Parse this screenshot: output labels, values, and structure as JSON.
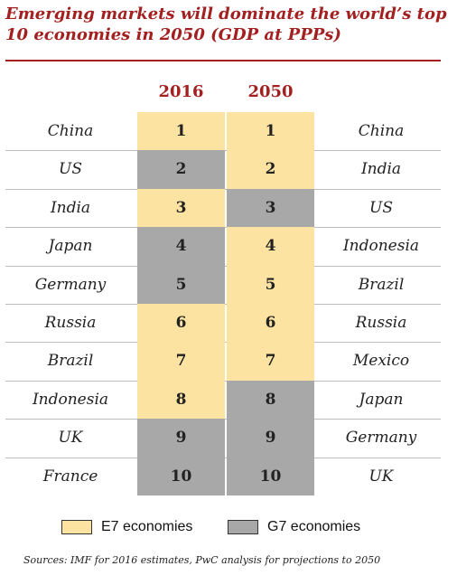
{
  "title": "Emerging markets will dominate the world’s top 10 economies in 2050 (GDP at PPPs)",
  "chart_data": {
    "type": "table",
    "title": "Emerging markets will dominate the world’s top 10 economies in 2050 (GDP at PPPs)",
    "columns": [
      "2016",
      "2050"
    ],
    "ranks": [
      "1",
      "2",
      "3",
      "4",
      "5",
      "6",
      "7",
      "8",
      "9",
      "10"
    ],
    "rows_2016": [
      {
        "rank": "1",
        "country": "China",
        "group": "E7"
      },
      {
        "rank": "2",
        "country": "US",
        "group": "G7"
      },
      {
        "rank": "3",
        "country": "India",
        "group": "E7"
      },
      {
        "rank": "4",
        "country": "Japan",
        "group": "G7"
      },
      {
        "rank": "5",
        "country": "Germany",
        "group": "G7"
      },
      {
        "rank": "6",
        "country": "Russia",
        "group": "E7"
      },
      {
        "rank": "7",
        "country": "Brazil",
        "group": "E7"
      },
      {
        "rank": "8",
        "country": "Indonesia",
        "group": "E7"
      },
      {
        "rank": "9",
        "country": "UK",
        "group": "G7"
      },
      {
        "rank": "10",
        "country": "France",
        "group": "G7"
      }
    ],
    "rows_2050": [
      {
        "rank": "1",
        "country": "China",
        "group": "E7"
      },
      {
        "rank": "2",
        "country": "India",
        "group": "E7"
      },
      {
        "rank": "3",
        "country": "US",
        "group": "G7"
      },
      {
        "rank": "4",
        "country": "Indonesia",
        "group": "E7"
      },
      {
        "rank": "5",
        "country": "Brazil",
        "group": "E7"
      },
      {
        "rank": "6",
        "country": "Russia",
        "group": "E7"
      },
      {
        "rank": "7",
        "country": "Mexico",
        "group": "E7"
      },
      {
        "rank": "8",
        "country": "Japan",
        "group": "G7"
      },
      {
        "rank": "9",
        "country": "Germany",
        "group": "G7"
      },
      {
        "rank": "10",
        "country": "UK",
        "group": "G7"
      }
    ],
    "legend": [
      {
        "key": "E7",
        "label": "E7 economies",
        "color": "#fde3a1"
      },
      {
        "key": "G7",
        "label": "G7 economies",
        "color": "#a8a8a8"
      }
    ]
  },
  "colors": {
    "title": "#a32020",
    "e7": "#fde3a1",
    "g7": "#a8a8a8",
    "rule": "#a32020"
  },
  "source": "Sources: IMF for 2016 estimates, PwC analysis for projections to 2050"
}
